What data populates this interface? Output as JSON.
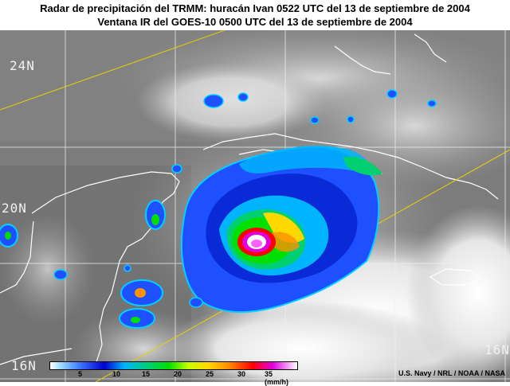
{
  "header": {
    "title_line1": "Radar de precipitación del TRMM: huracán Ivan  0522 UTC del 13 de septiembre de 2004",
    "title_line2": "Ventana IR del GOES-10  0500 UTC  del 13 de septiembre de 2004"
  },
  "map": {
    "lat_labels": [
      "24N",
      "20N",
      "16N"
    ],
    "swath_color": "#e8d000"
  },
  "colorbar": {
    "ticks": [
      "5",
      "10",
      "15",
      "20",
      "25",
      "30",
      "35 (mm/h)"
    ],
    "colors": [
      "#ffffff",
      "#3c78ff",
      "#0000d0",
      "#00b4ff",
      "#00d070",
      "#00e000",
      "#c8ff00",
      "#ffd800",
      "#ff9000",
      "#ff0000",
      "#e000e0"
    ]
  },
  "credit": "U.S. Navy / NRL / NOAA / NASA"
}
